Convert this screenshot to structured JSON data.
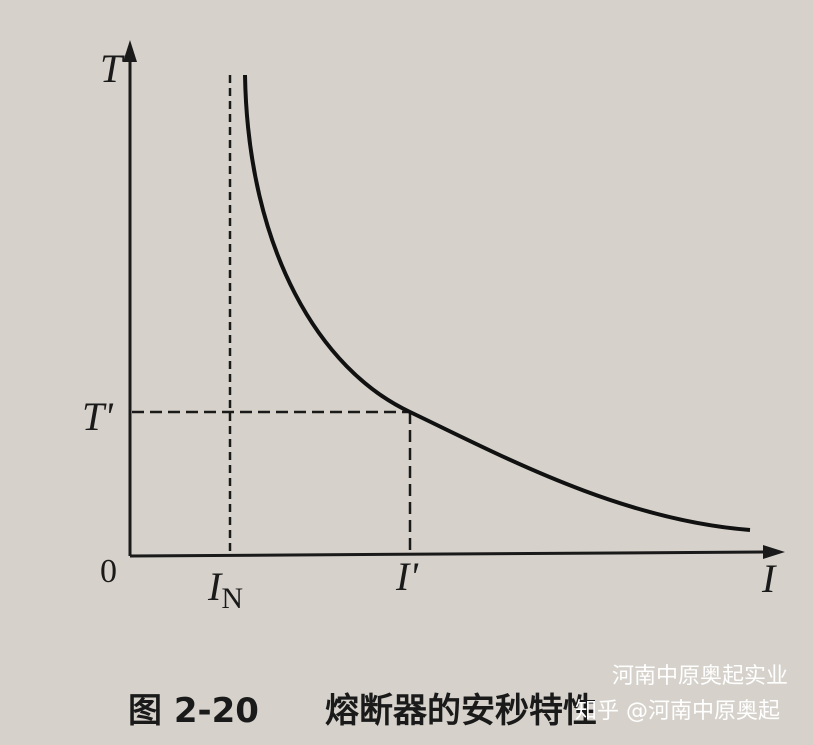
{
  "figure": {
    "labels": {
      "y_axis": "T",
      "y_mark": "T'",
      "origin": "0",
      "x_rated": "I",
      "x_rated_sub": "N",
      "x_mark": "I'",
      "x_axis": "I"
    },
    "caption": {
      "number": "图 2-20",
      "title": "熔断器的安秒特性"
    }
  },
  "watermark": {
    "company": "河南中原奥起实业",
    "source": "知乎 @河南中原奥起"
  }
}
